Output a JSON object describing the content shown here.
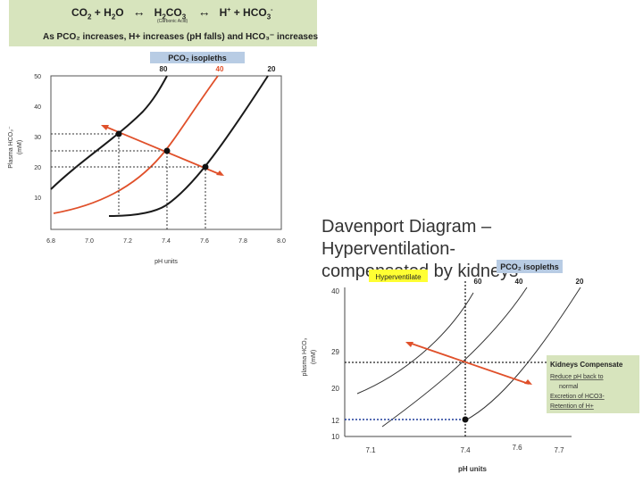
{
  "equation": {
    "co2": "CO",
    "co2_sub": "2",
    "plus_h2o": "+ H",
    "h2o_sub": "2",
    "h2o_tail": "O",
    "arrow1": "↔",
    "h2co3": "H",
    "h2co3_sub1": "2",
    "h2co3_mid": "CO",
    "h2co3_sub2": "3",
    "carbonic_label": "(Carbonic Acid)",
    "arrow2": "↔",
    "hplus": "H",
    "hplus_sup": "+",
    "plus_hco3": "+ HCO",
    "hco3_sub": "3",
    "hco3_sup": "-",
    "caption": "As PCO₂ increases, H+ increases (pH falls) and HCO₃⁻ increases"
  },
  "colors": {
    "banner": "#d7e4bd",
    "isopleth_label_bg": "#b8cce4",
    "hyper_bg": "#ffff33",
    "red_line": "#e0502a",
    "blue_dotted": "#1f3b9a"
  },
  "chart1": {
    "isopleth_label": "PCO₂ isopleths",
    "iso_labels": [
      "80",
      "40",
      "20"
    ],
    "yticks": [
      "50",
      "40",
      "30",
      "20",
      "10"
    ],
    "xticks": [
      "6.8",
      "7.0",
      "7.2",
      "7.4",
      "7.6",
      "7.8",
      "8.0"
    ],
    "xlabel": "pH units",
    "ylabel1": "Plasma HCO₃⁻",
    "ylabel2": "(mM)"
  },
  "title": {
    "line1": "Davenport Diagram – Hyperventilation-",
    "line2": "compensated by kidneys"
  },
  "chart2": {
    "isopleth_label": "PCO₂ isopleths",
    "hyper_label": "Hyperventilate",
    "iso_labels": [
      "60",
      "40",
      "20"
    ],
    "yticks": [
      "40",
      "29",
      "20",
      "12",
      "10"
    ],
    "xticks": [
      "7.1",
      "7.4",
      "7.6",
      "7.7"
    ],
    "xlabel": "pH units",
    "ylabel1": "plasma HCO₃",
    "ylabel2": "(mM)",
    "kidneys": {
      "heading": "Kidneys Compensate",
      "line1": "Reduce pH back to",
      "line2": "normal",
      "line3": "Excretion of HCO3-",
      "line4": "Retention of H+"
    }
  }
}
